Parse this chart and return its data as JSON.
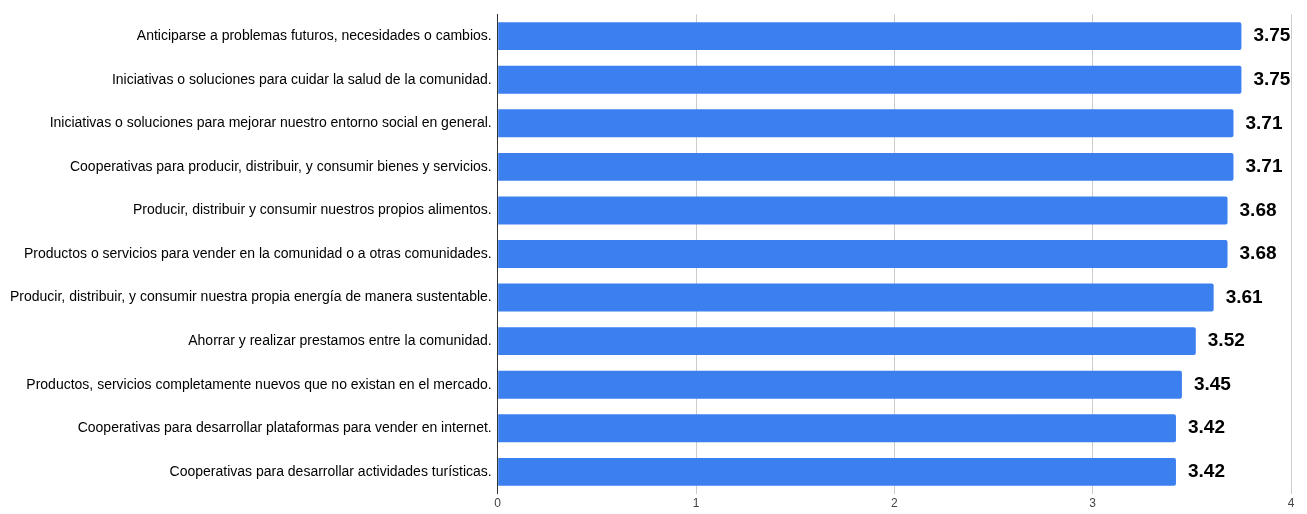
{
  "chart_data": {
    "type": "bar",
    "orientation": "horizontal",
    "categories": [
      "Anticiparse a problemas futuros, necesidades o cambios.",
      "Iniciativas o soluciones para cuidar la salud de la comunidad.",
      "Iniciativas o soluciones para mejorar nuestro entorno social en general.",
      "Cooperativas para producir, distribuir, y consumir bienes y servicios.",
      "Producir, distribuir y consumir nuestros propios alimentos.",
      "Productos o servicios para vender en la comunidad o a otras comunidades.",
      "Producir, distribuir, y consumir nuestra propia energía de manera sustentable.",
      "Ahorrar y realizar prestamos entre la comunidad.",
      "Productos, servicios completamente nuevos que no existan en el mercado.",
      "Cooperativas para desarrollar plataformas para vender en internet.",
      "Cooperativas para desarrollar actividades turísticas."
    ],
    "values": [
      3.75,
      3.75,
      3.71,
      3.71,
      3.68,
      3.68,
      3.61,
      3.52,
      3.45,
      3.42,
      3.42
    ],
    "color": "#3c80f0",
    "xlim": [
      0,
      4
    ],
    "xticks": [
      0,
      1,
      2,
      3,
      4
    ],
    "grid": "x",
    "legend": false,
    "data_labels": true
  }
}
